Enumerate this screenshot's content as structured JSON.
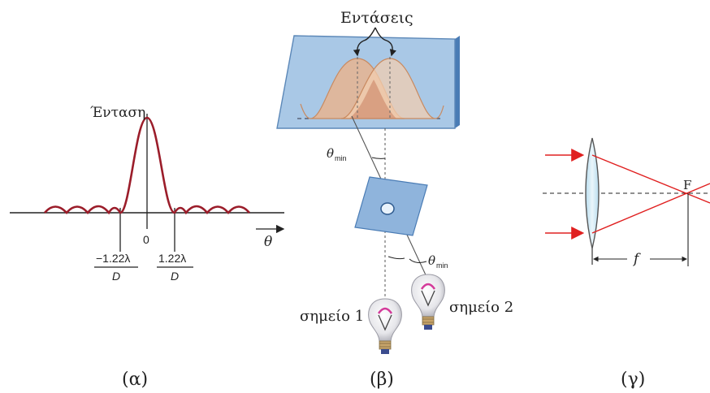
{
  "panel_a": {
    "ylabel": "Ένταση",
    "zero": "0",
    "xlabel": "θ",
    "neg_tick_num": "−1.22λ",
    "neg_tick_den": "D",
    "pos_tick_num": "1.22λ",
    "pos_tick_den": "D",
    "caption": "(α)",
    "curve_color": "#9b1d2a"
  },
  "panel_b": {
    "intensities_label": "Εντάσεις",
    "theta_top": "θ",
    "theta_top_sub": "min",
    "theta_bottom": "θ",
    "theta_bottom_sub": "min",
    "point1_label": "σημείο 1",
    "point2_label": "σημείο 2",
    "caption": "(β)",
    "screen_color": "#a9c8e6",
    "peak_color": "#e8b48f"
  },
  "panel_c": {
    "focus_label": "F",
    "focal_length_label": "f",
    "caption": "(γ)",
    "ray_color": "#e02020",
    "lens_color": "#cfe8f4"
  }
}
